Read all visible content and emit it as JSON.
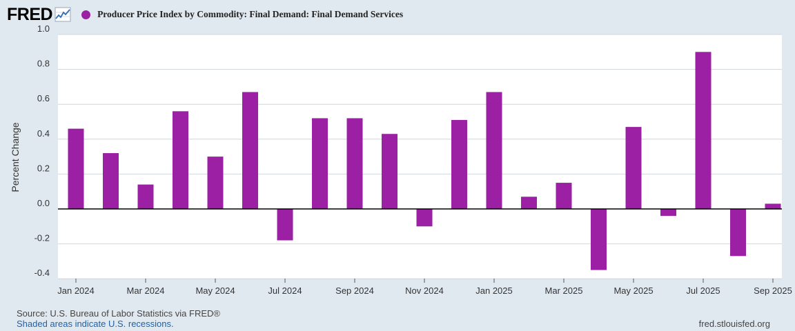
{
  "header": {
    "logo_text": "FRED",
    "legend_label": "Producer Price Index by Commodity: Final Demand: Final Demand Services"
  },
  "colors": {
    "series": "#9c20a4",
    "background": "#e1e9f0",
    "plot": "#ffffff"
  },
  "footer": {
    "source": "Source: U.S. Bureau of Labor Statistics via FRED®",
    "recessions": "Shaded areas indicate U.S. recessions.",
    "site": "fred.stlouisfed.org"
  },
  "chart_data": {
    "type": "bar",
    "title": "Producer Price Index by Commodity: Final Demand: Final Demand Services",
    "xlabel": "",
    "ylabel": "Percent Change",
    "ylim": [
      -0.4,
      1.0
    ],
    "yticks": [
      {
        "value": 1.0,
        "label": "1.0"
      },
      {
        "value": 0.8,
        "label": "0.8"
      },
      {
        "value": 0.6,
        "label": "0.6"
      },
      {
        "value": 0.4,
        "label": "0.4"
      },
      {
        "value": 0.2,
        "label": "0.2"
      },
      {
        "value": 0.0,
        "label": "0.0"
      },
      {
        "value": -0.2,
        "label": "-0.2"
      },
      {
        "value": -0.4,
        "label": "-0.4"
      }
    ],
    "categories": [
      "2024-01",
      "2024-02",
      "2024-03",
      "2024-04",
      "2024-05",
      "2024-06",
      "2024-07",
      "2024-08",
      "2024-09",
      "2024-10",
      "2024-11",
      "2024-12",
      "2025-01",
      "2025-02",
      "2025-03",
      "2025-04",
      "2025-05",
      "2025-06",
      "2025-07",
      "2025-08",
      "2025-09"
    ],
    "values": [
      0.46,
      0.32,
      0.14,
      0.56,
      0.3,
      0.67,
      -0.18,
      0.52,
      0.52,
      0.43,
      -0.1,
      0.51,
      0.67,
      0.07,
      0.15,
      -0.35,
      0.47,
      -0.04,
      0.9,
      -0.27,
      0.03
    ],
    "xticks": [
      {
        "index": 0,
        "label": "Jan 2024"
      },
      {
        "index": 2,
        "label": "Mar 2024"
      },
      {
        "index": 4,
        "label": "May 2024"
      },
      {
        "index": 6,
        "label": "Jul 2024"
      },
      {
        "index": 8,
        "label": "Sep 2024"
      },
      {
        "index": 10,
        "label": "Nov 2024"
      },
      {
        "index": 12,
        "label": "Jan 2025"
      },
      {
        "index": 14,
        "label": "Mar 2025"
      },
      {
        "index": 16,
        "label": "May 2025"
      },
      {
        "index": 18,
        "label": "Jul 2025"
      },
      {
        "index": 20,
        "label": "Sep 2025"
      }
    ],
    "grid": true
  }
}
